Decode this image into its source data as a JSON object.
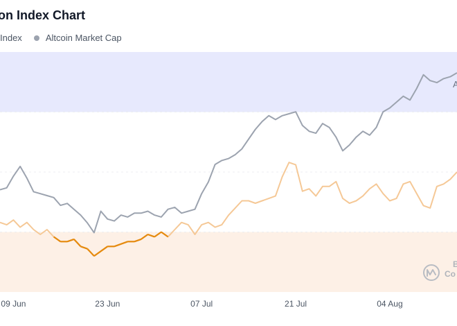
{
  "chart": {
    "title": "on Index Chart",
    "legend": [
      {
        "label": "Index",
        "color": "#f59e0b"
      },
      {
        "label": "Altcoin Market Cap",
        "color": "#9ca3af"
      }
    ],
    "band_labels": {
      "top": "A"
    },
    "watermark": {
      "line1": "B",
      "line2": "Co"
    }
  },
  "chart_data": {
    "type": "line",
    "title": "on Index Chart",
    "xlabel": "",
    "ylabel": "",
    "x_ticks": [
      "09 Jun",
      "23 Jun",
      "07 Jul",
      "21 Jul",
      "04 Aug"
    ],
    "x_tick_day_index": [
      2,
      16,
      30,
      44,
      58
    ],
    "x_range_days": [
      0,
      68
    ],
    "index_ylim": [
      0,
      100
    ],
    "index_zones": [
      {
        "name": "altcoin-season-band",
        "from": 75,
        "to": 100,
        "color": "#e7e9fd"
      },
      {
        "name": "bitcoin-season-band",
        "from": 0,
        "to": 25,
        "color": "#fdf0e6"
      }
    ],
    "grid": {
      "horizontal": true,
      "vertical": false
    },
    "legend_position": "top-left",
    "series": [
      {
        "name": "Index",
        "color": "#f5c896",
        "below_band_color": "#e58a0e",
        "axis": "index",
        "x": [
          0,
          1,
          2,
          3,
          4,
          5,
          6,
          7,
          8,
          9,
          10,
          11,
          12,
          13,
          14,
          15,
          16,
          17,
          18,
          19,
          20,
          21,
          22,
          23,
          24,
          25,
          26,
          27,
          28,
          29,
          30,
          31,
          32,
          33,
          34,
          35,
          36,
          37,
          38,
          39,
          40,
          41,
          42,
          43,
          44,
          45,
          46,
          47,
          48,
          49,
          50,
          51,
          52,
          53,
          54,
          55,
          56,
          57,
          58,
          59,
          60,
          61,
          62,
          63,
          64,
          65,
          66,
          67,
          68
        ],
        "values": [
          29,
          28,
          30,
          27,
          29,
          26,
          24,
          26,
          23,
          21,
          21,
          22,
          19,
          18,
          15,
          17,
          19,
          19,
          20,
          21,
          21,
          22,
          24,
          23,
          25,
          23,
          26,
          29,
          28,
          24,
          28,
          29,
          27,
          28,
          32,
          35,
          38,
          38,
          37,
          38,
          39,
          40,
          48,
          54,
          53,
          42,
          43,
          40,
          44,
          44,
          46,
          39,
          37,
          38,
          40,
          43,
          45,
          41,
          38,
          39,
          45,
          46,
          41,
          36,
          35,
          44,
          45,
          47,
          50
        ],
        "plot_range": [
          0,
          68
        ]
      },
      {
        "name": "Altcoin Market Cap",
        "color": "#9ca3af",
        "axis": "relative",
        "x": [
          0,
          1,
          2,
          3,
          4,
          5,
          6,
          7,
          8,
          9,
          10,
          11,
          12,
          13,
          14,
          15,
          16,
          17,
          18,
          19,
          20,
          21,
          22,
          23,
          24,
          25,
          26,
          27,
          28,
          29,
          30,
          31,
          32,
          33,
          34,
          35,
          36,
          37,
          38,
          39,
          40,
          41,
          42,
          43,
          44,
          45,
          46,
          47,
          48,
          49,
          50,
          51,
          52,
          53,
          54,
          55,
          56,
          57,
          58,
          59,
          60,
          61,
          62,
          63,
          64,
          65,
          66,
          67,
          68
        ],
        "values": [
          40,
          41,
          47,
          52,
          46,
          39,
          38,
          37,
          36,
          32,
          33,
          30,
          27,
          23,
          18,
          29,
          25,
          24,
          27,
          26,
          28,
          28,
          29,
          27,
          26,
          30,
          31,
          28,
          29,
          30,
          38,
          44,
          53,
          55,
          56,
          58,
          61,
          66,
          71,
          75,
          78,
          76,
          78,
          79,
          80,
          73,
          70,
          69,
          74,
          72,
          67,
          60,
          63,
          67,
          70,
          68,
          72,
          80,
          82,
          85,
          88,
          86,
          92,
          99,
          96,
          95,
          97,
          98,
          100
        ]
      }
    ]
  }
}
